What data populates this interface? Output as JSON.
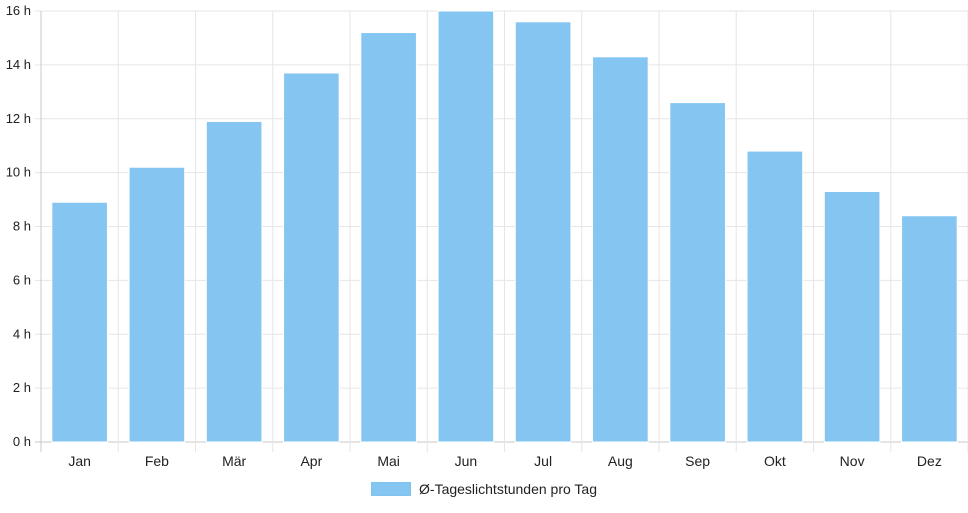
{
  "chart_data": {
    "type": "bar",
    "categories": [
      "Jan",
      "Feb",
      "Mär",
      "Apr",
      "Mai",
      "Jun",
      "Jul",
      "Aug",
      "Sep",
      "Okt",
      "Nov",
      "Dez"
    ],
    "series": [
      {
        "name": "Ø-Tageslichtstunden pro Tag",
        "values": [
          8.9,
          10.2,
          11.9,
          13.7,
          15.2,
          16.0,
          15.6,
          14.3,
          12.6,
          10.8,
          9.3,
          8.4
        ]
      }
    ],
    "yticks": [
      0,
      2,
      4,
      6,
      8,
      10,
      12,
      14,
      16
    ],
    "ytick_suffix": " h",
    "ylim": [
      0,
      16
    ],
    "grid": true,
    "legend_position": "bottom",
    "bar_color": "#85c5f1"
  }
}
